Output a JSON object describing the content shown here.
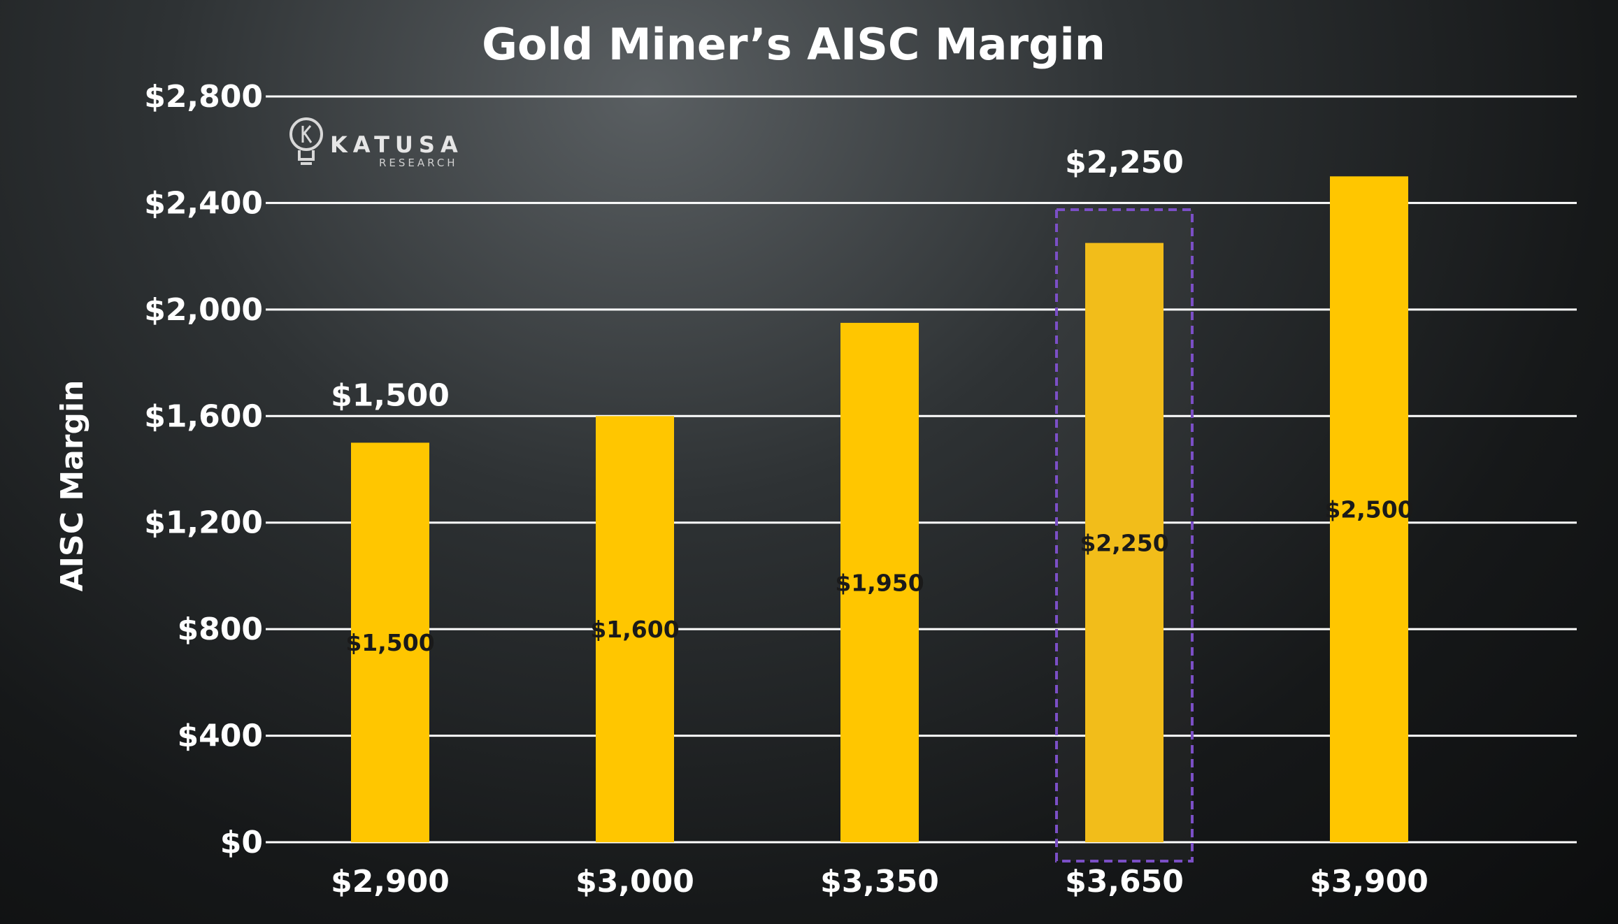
{
  "logo": {
    "name": "KATUSA",
    "sub": "RESEARCH"
  },
  "colors": {
    "bar": "#ffc600",
    "bar_highlight": "#f2bd1a",
    "highlight_border": "#7b4fc6",
    "grid": "#ffffff"
  },
  "chart_data": {
    "type": "bar",
    "title": "Gold Miner’s AISC Margin",
    "xlabel": "",
    "ylabel": "AISC Margin",
    "categories": [
      "$2,900",
      "$3,000",
      "$3,350",
      "$3,650",
      "$3,900"
    ],
    "values": [
      1500,
      1600,
      1950,
      2250,
      2500
    ],
    "bar_labels": [
      "$1,500",
      "$1,600",
      "$1,950",
      "$2,250",
      "$2,500"
    ],
    "ylim": [
      0,
      2800
    ],
    "yticks": [
      0,
      400,
      800,
      1200,
      1600,
      2000,
      2400,
      2800
    ],
    "ytick_labels": [
      "$0",
      "$400",
      "$800",
      "$1,200",
      "$1,600",
      "$2,000",
      "$2,400",
      "$2,800"
    ],
    "grid": true,
    "highlighted_category": "$3,650",
    "annotations": [
      {
        "category": "$2,900",
        "text": "$1,500"
      },
      {
        "category": "$3,650",
        "text": "$2,250"
      }
    ]
  }
}
